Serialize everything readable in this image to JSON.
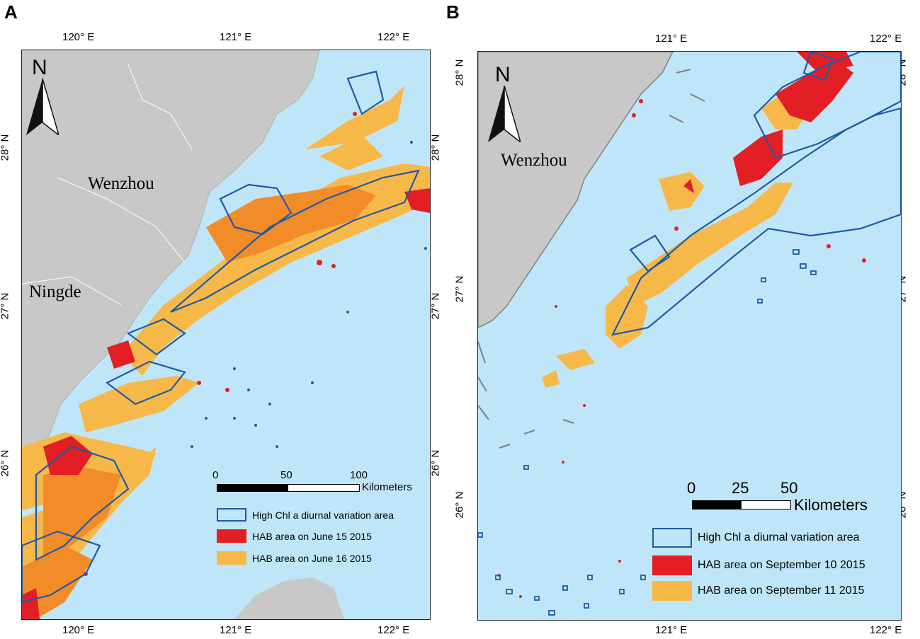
{
  "panels": [
    {
      "letter": "A",
      "lon_ticks": [
        "120° E",
        "121° E",
        "122° E"
      ],
      "lat_ticks": [
        "28° N",
        "27° N",
        "26° N"
      ],
      "cities": [
        "Wenzhou",
        "Ningde"
      ],
      "north_label": "N",
      "scale": {
        "ticks": [
          "0",
          "50",
          "100"
        ],
        "unit": "Kilometers"
      },
      "legend": [
        {
          "label": "High Chl a diurnal variation area"
        },
        {
          "label": "HAB area on June 15 2015"
        },
        {
          "label": "HAB area on June 16 2015"
        }
      ]
    },
    {
      "letter": "B",
      "lon_ticks": [
        "121° E",
        "122° E"
      ],
      "lat_ticks": [
        "28° N",
        "27° N",
        "26° N"
      ],
      "cities": [
        "Wenzhou"
      ],
      "north_label": "N",
      "scale": {
        "ticks": [
          "0",
          "25",
          "50"
        ],
        "unit": "Kilometers"
      },
      "legend": [
        {
          "label": "High Chl a diurnal variation area"
        },
        {
          "label": "HAB area on September 10 2015"
        },
        {
          "label": "HAB area on September 11 2015"
        }
      ]
    }
  ],
  "colors": {
    "sea": "#bfe6f8",
    "land": "#c8c8c8",
    "chl_outline": "#1f5aa6",
    "hab_day1": "#e31e24",
    "hab_day2": "#f7b84a",
    "hab_dense": "#f28c28"
  }
}
